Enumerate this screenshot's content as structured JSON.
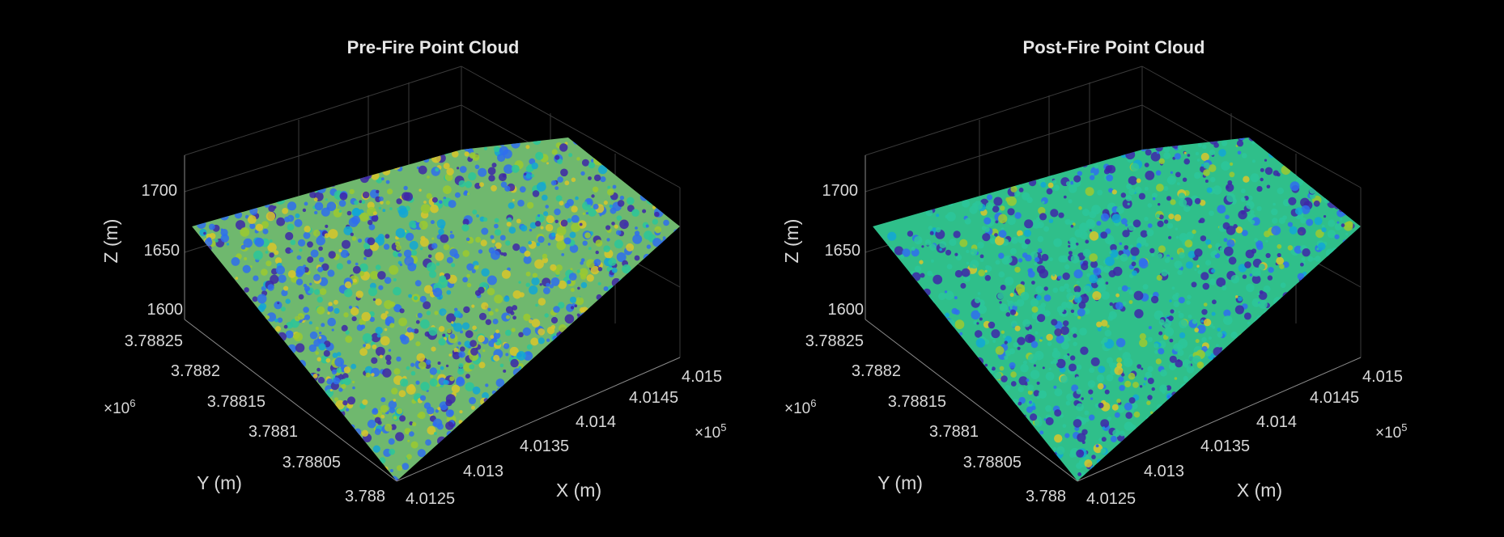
{
  "colors": {
    "background": "#000000",
    "text": "#d9d9d9",
    "grid": "#3a3a3a",
    "colormap": [
      "#3e26a8",
      "#2f6dee",
      "#12a6d6",
      "#2cc59a",
      "#9cc92f",
      "#d9c52a"
    ]
  },
  "chart_data": [
    {
      "type": "scatter",
      "subtype": "3d-point-cloud",
      "title": "Pre-Fire Point Cloud",
      "xlabel": "X (m)",
      "ylabel": "Y (m)",
      "zlabel": "Z (m)",
      "x_exponent": "×10",
      "x_exponent_power": "5",
      "y_exponent": "×10",
      "y_exponent_power": "6",
      "x_ticks": [
        "4.0125",
        "4.013",
        "4.0135",
        "4.014",
        "4.0145",
        "4.015"
      ],
      "y_ticks": [
        "3.788",
        "3.78805",
        "3.7881",
        "3.78815",
        "3.7882",
        "3.78825"
      ],
      "z_ticks": [
        "1600",
        "1650",
        "1700"
      ],
      "xlim": [
        401250,
        401500
      ],
      "ylim": [
        3788000,
        3788250
      ],
      "zlim": [
        1600,
        1700
      ],
      "color_mix": "green-yellow dominant",
      "grid": true
    },
    {
      "type": "scatter",
      "subtype": "3d-point-cloud",
      "title": "Post-Fire Point Cloud",
      "xlabel": "X (m)",
      "ylabel": "Y (m)",
      "zlabel": "Z (m)",
      "x_exponent": "×10",
      "x_exponent_power": "5",
      "y_exponent": "×10",
      "y_exponent_power": "6",
      "x_ticks": [
        "4.0125",
        "4.013",
        "4.0135",
        "4.014",
        "4.0145",
        "4.015"
      ],
      "y_ticks": [
        "3.788",
        "3.78805",
        "3.7881",
        "3.78815",
        "3.7882",
        "3.78825"
      ],
      "z_ticks": [
        "1600",
        "1650",
        "1700"
      ],
      "xlim": [
        401250,
        401500
      ],
      "ylim": [
        3788000,
        3788250
      ],
      "zlim": [
        1600,
        1700
      ],
      "color_mix": "green with blue patches",
      "grid": true
    }
  ]
}
